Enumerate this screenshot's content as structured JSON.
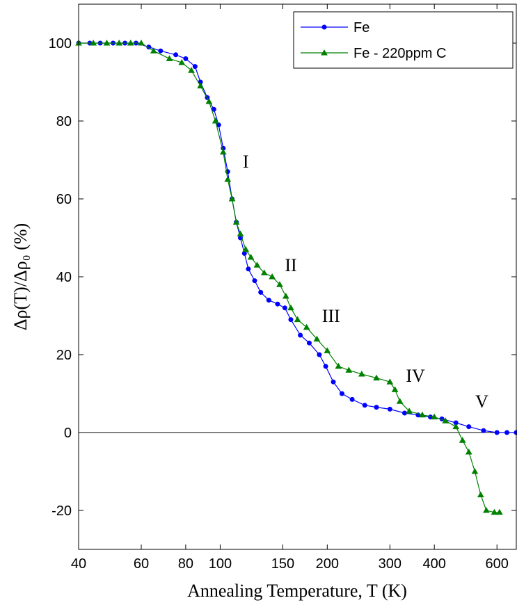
{
  "chart_data": {
    "type": "line",
    "x_label": "Annealing Temperature, T (K)",
    "y_label": "Δρ(T)/Δρ₀ (%)",
    "xscale": "log",
    "xlim": [
      40,
      680
    ],
    "ylim": [
      -30,
      110
    ],
    "xticks": [
      40,
      60,
      80,
      100,
      150,
      200,
      300,
      400,
      600
    ],
    "yticks": [
      -20,
      0,
      20,
      40,
      60,
      80,
      100
    ],
    "zero_line": true,
    "legend": "upper right",
    "series": [
      {
        "name": "Fe",
        "color": "#0000ff",
        "marker": "circle",
        "x": [
          40,
          43,
          46,
          50,
          54,
          58,
          63,
          68,
          75,
          80,
          85,
          88,
          92,
          96,
          99,
          102,
          105,
          108,
          111,
          114,
          117,
          120,
          125,
          130,
          137,
          145,
          152,
          158,
          168,
          178,
          190,
          198,
          208,
          220,
          235,
          255,
          275,
          300,
          330,
          360,
          390,
          420,
          460,
          500,
          550,
          600,
          640,
          680
        ],
        "values": [
          100,
          100,
          100,
          100,
          100,
          100,
          99,
          98,
          97,
          96,
          94,
          90,
          86,
          83,
          79,
          73,
          67,
          60,
          54,
          50,
          46,
          42,
          39,
          36,
          34,
          33,
          32,
          29,
          25,
          23,
          20,
          17,
          13,
          10,
          8.5,
          7,
          6.5,
          6,
          5,
          4.5,
          4,
          3.5,
          2.5,
          1.5,
          0.5,
          0,
          0,
          0
        ]
      },
      {
        "name": "Fe - 220ppm C",
        "color": "#008000",
        "marker": "triangle",
        "x": [
          40,
          44,
          48,
          52,
          56,
          60,
          65,
          72,
          78,
          83,
          88,
          93,
          97,
          102,
          105,
          108,
          111,
          114,
          118,
          122,
          127,
          133,
          140,
          147,
          153,
          158,
          165,
          175,
          187,
          200,
          215,
          230,
          250,
          275,
          300,
          310,
          320,
          340,
          370,
          400,
          430,
          460,
          480,
          500,
          520,
          540,
          560,
          590,
          610
        ],
        "values": [
          100,
          100,
          100,
          100,
          100,
          100,
          98,
          96,
          95,
          93,
          89,
          85,
          80,
          72,
          65,
          60,
          54,
          51,
          47,
          45,
          43,
          41,
          40,
          38,
          35,
          32,
          29,
          27,
          24,
          21,
          17,
          16,
          15,
          14,
          13,
          11,
          8,
          5.5,
          4.5,
          4,
          3,
          1.5,
          -2,
          -5,
          -10,
          -16,
          -20,
          -20.5,
          -20.5
        ]
      }
    ],
    "annotations": [
      {
        "text": "I",
        "x": 118,
        "y": 69.6
      },
      {
        "text": "II",
        "x": 158,
        "y": 43
      },
      {
        "text": "III",
        "x": 205,
        "y": 30
      },
      {
        "text": "IV",
        "x": 354,
        "y": 14.6
      },
      {
        "text": "V",
        "x": 544,
        "y": 8
      }
    ]
  }
}
